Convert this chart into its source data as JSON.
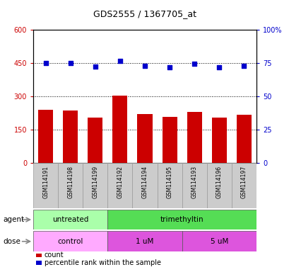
{
  "title": "GDS2555 / 1367705_at",
  "samples": [
    "GSM114191",
    "GSM114198",
    "GSM114199",
    "GSM114192",
    "GSM114194",
    "GSM114195",
    "GSM114193",
    "GSM114196",
    "GSM114197"
  ],
  "bar_values": [
    240,
    238,
    205,
    305,
    220,
    210,
    232,
    205,
    218
  ],
  "scatter_values": [
    75,
    75,
    72.5,
    77,
    73,
    72,
    74.5,
    72,
    73
  ],
  "bar_color": "#cc0000",
  "scatter_color": "#0000cc",
  "left_ylim": [
    0,
    600
  ],
  "right_ylim": [
    0,
    100
  ],
  "left_yticks": [
    0,
    150,
    300,
    450,
    600
  ],
  "left_yticklabels": [
    "0",
    "150",
    "300",
    "450",
    "600"
  ],
  "right_yticks": [
    0,
    25,
    50,
    75,
    100
  ],
  "right_yticklabels": [
    "0",
    "25",
    "50",
    "75",
    "100%"
  ],
  "hlines": [
    150,
    300,
    450
  ],
  "agent_labels": [
    {
      "text": "untreated",
      "start": 0,
      "end": 3,
      "color": "#aaffaa"
    },
    {
      "text": "trimethyltin",
      "start": 3,
      "end": 9,
      "color": "#55dd55"
    }
  ],
  "dose_labels": [
    {
      "text": "control",
      "start": 0,
      "end": 3,
      "color": "#ffaaff"
    },
    {
      "text": "1 uM",
      "start": 3,
      "end": 6,
      "color": "#dd55dd"
    },
    {
      "text": "5 uM",
      "start": 6,
      "end": 9,
      "color": "#dd55dd"
    }
  ],
  "legend_count_label": "count",
  "legend_pct_label": "percentile rank within the sample",
  "agent_row_label": "agent",
  "dose_row_label": "dose",
  "background_color": "#ffffff",
  "plot_bg_color": "#ffffff",
  "tick_label_color_left": "#cc0000",
  "tick_label_color_right": "#0000cc",
  "xtick_bg_color": "#cccccc",
  "xtick_border_color": "#999999"
}
